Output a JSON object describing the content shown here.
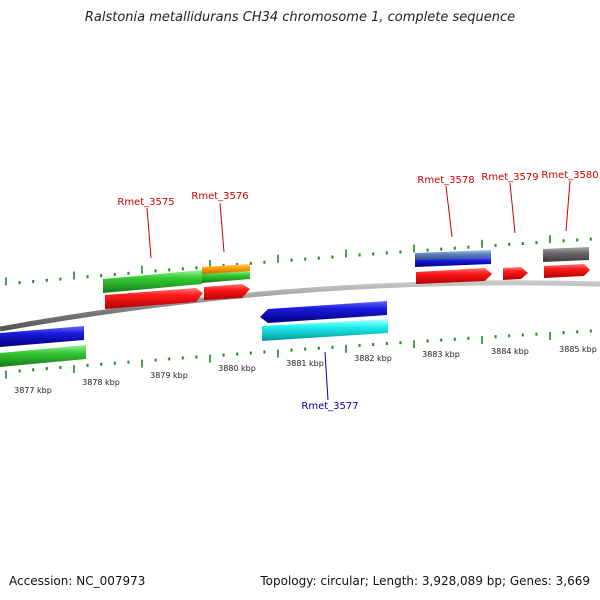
{
  "title": "Ralstonia metallidurans CH34 chromosome 1, complete sequence",
  "footer": {
    "accession": "Accession: NC_007973",
    "stats": "Topology: circular; Length: 3,928,089 bp; Genes: 3,669"
  },
  "kbp_labels": [
    "3877 kbp",
    "3878 kbp",
    "3879 kbp",
    "3880 kbp",
    "3881 kbp",
    "3882 kbp",
    "3883 kbp",
    "3884 kbp",
    "3885 kbp"
  ],
  "gene_labels": [
    {
      "text": "Rmet_3575",
      "strand": "forward"
    },
    {
      "text": "Rmet_3576",
      "strand": "forward"
    },
    {
      "text": "Rmet_3577",
      "strand": "reverse"
    },
    {
      "text": "Rmet_3578",
      "strand": "forward"
    },
    {
      "text": "Rmet_3579",
      "strand": "forward"
    },
    {
      "text": "Rmet_3580",
      "strand": "forward"
    }
  ],
  "colors": {
    "forward_label": "#cc0000",
    "reverse_label": "#0000aa",
    "backbone": "#8a8a8a",
    "ticks": "#228822",
    "cds_red": "#ee1111",
    "cds_blue": "#1111cc",
    "cds_cyan": "#22e0e0",
    "cds_green": "#33bb33",
    "cds_orange": "#ee8800",
    "cds_steel": "#5a7fb0",
    "cds_grey": "#666666"
  }
}
